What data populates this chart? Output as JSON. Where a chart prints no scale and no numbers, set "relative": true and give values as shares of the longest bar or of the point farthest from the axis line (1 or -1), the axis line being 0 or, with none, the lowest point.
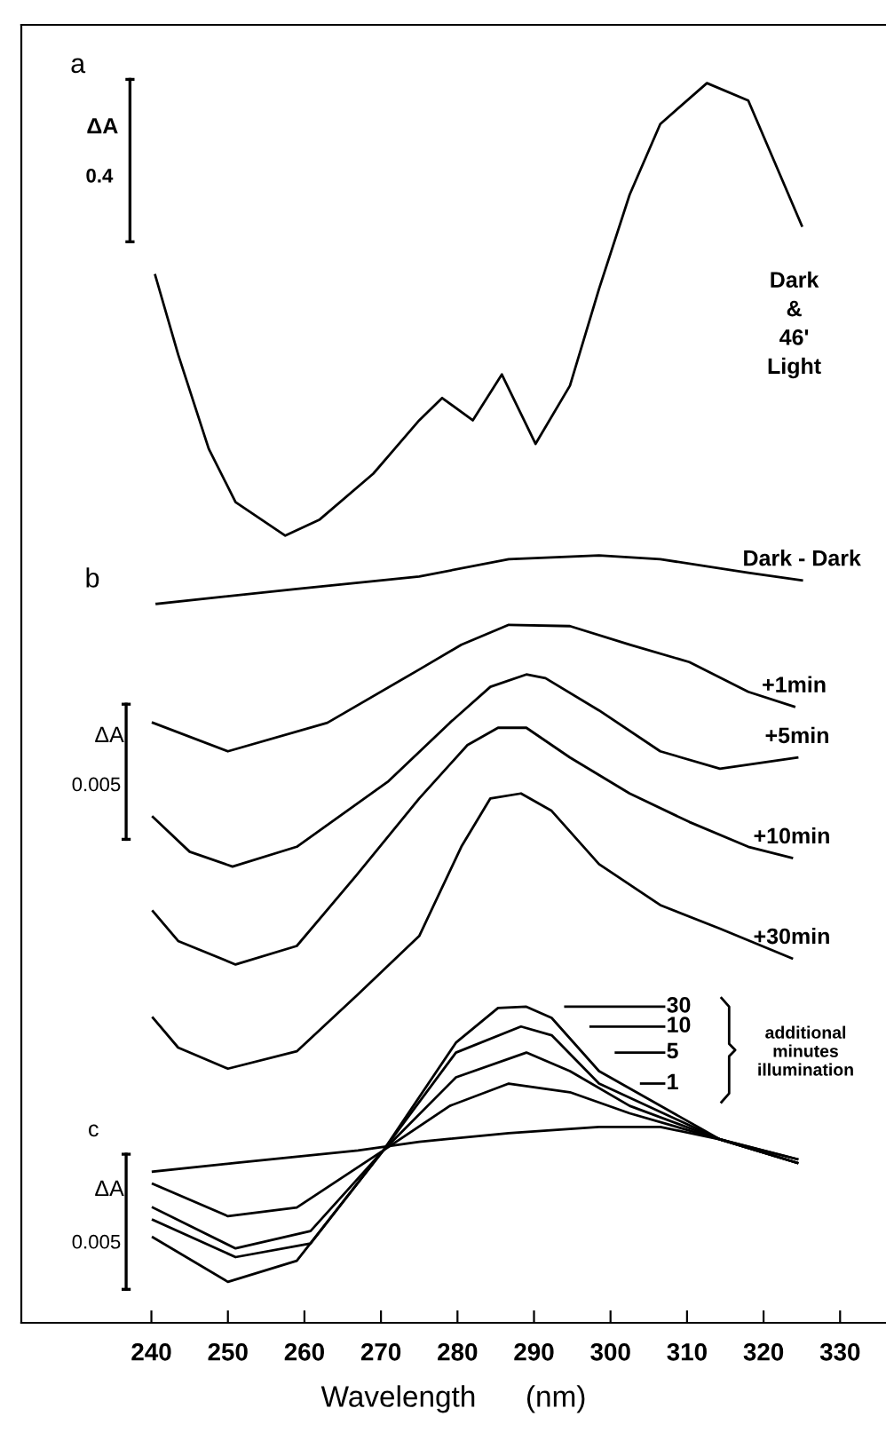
{
  "chart_data": {
    "type": "line",
    "relative": true,
    "xlabel": "Wavelength      (nm)",
    "xlim": [
      223,
      336
    ],
    "xticks": [
      240,
      250,
      260,
      270,
      280,
      290,
      300,
      310,
      320,
      330
    ],
    "grid": false,
    "legend": "right",
    "marker": "none",
    "line_style": "solid",
    "annotations": [
      "a",
      "ΔA",
      "0.4",
      "b",
      "ΔA",
      "0.005",
      "c",
      "ΔA",
      "0.005",
      "additional\nminutes\nillumination"
    ],
    "series": [
      {
        "name": "Dark\n&\n46'\nLight",
        "color": "#000000",
        "x": [
          240.5,
          243.5,
          247.5,
          251,
          257.5,
          262,
          269,
          275,
          278,
          282,
          285.8,
          290.2,
          294.7,
          298.5,
          302.5,
          306.5,
          312.6,
          318,
          325
        ],
        "values": [
          0.845,
          0.781,
          0.705,
          0.662,
          0.635,
          0.648,
          0.685,
          0.728,
          0.746,
          0.728,
          0.765,
          0.709,
          0.756,
          0.834,
          0.91,
          0.967,
          1.0,
          0.986,
          0.885
        ]
      },
      {
        "name": "Dark - Dark",
        "color": "#000000",
        "x": [
          240.7,
          259,
          275,
          286.7,
          298.5,
          306.5,
          318,
          325
        ],
        "values": [
          0.58,
          0.592,
          0.602,
          0.616,
          0.619,
          0.616,
          0.605,
          0.599
        ]
      },
      {
        "name": "+1min",
        "color": "#000000",
        "x": [
          240.2,
          250,
          263,
          275,
          280.5,
          286.7,
          294.7,
          302.5,
          310.3,
          318,
          324
        ],
        "values": [
          0.484,
          0.461,
          0.484,
          0.527,
          0.547,
          0.563,
          0.562,
          0.547,
          0.533,
          0.509,
          0.497
        ]
      },
      {
        "name": "+5min",
        "color": "#000000",
        "x": [
          240.2,
          245,
          250.6,
          259,
          271,
          279,
          284.3,
          289,
          291.5,
          298.5,
          306.5,
          314.3,
          324.4
        ],
        "values": [
          0.408,
          0.38,
          0.368,
          0.384,
          0.437,
          0.484,
          0.513,
          0.523,
          0.52,
          0.494,
          0.461,
          0.447,
          0.456
        ]
      },
      {
        "name": "+10min",
        "color": "#000000",
        "x": [
          240.2,
          243.5,
          251,
          259,
          266.8,
          275,
          281.3,
          285.3,
          289,
          294.7,
          302.5,
          310.3,
          318,
          323.7
        ],
        "values": [
          0.332,
          0.308,
          0.289,
          0.304,
          0.361,
          0.423,
          0.466,
          0.48,
          0.48,
          0.456,
          0.427,
          0.404,
          0.384,
          0.375
        ]
      },
      {
        "name": "+30min",
        "color": "#000000",
        "x": [
          240.2,
          243.5,
          250,
          259,
          267,
          275,
          280.5,
          284.3,
          288.3,
          292.3,
          298.5,
          306.5,
          314.3,
          323.7
        ],
        "values": [
          0.246,
          0.222,
          0.205,
          0.219,
          0.265,
          0.312,
          0.384,
          0.423,
          0.427,
          0.413,
          0.37,
          0.337,
          0.318,
          0.294
        ]
      },
      {
        "color": "#000000",
        "x": [
          240.2,
          251,
          267,
          275,
          286.7,
          298.5,
          306.5,
          314.3,
          324.4
        ],
        "values": [
          0.122,
          0.129,
          0.139,
          0.146,
          0.153,
          0.158,
          0.158,
          0.148,
          0.132
        ]
      },
      {
        "name": "1",
        "color": "#000000",
        "x": [
          240.2,
          250,
          259,
          270.3,
          279,
          286.7,
          294.7,
          302.5,
          314.3,
          324.4
        ],
        "values": [
          0.112,
          0.086,
          0.093,
          0.139,
          0.175,
          0.193,
          0.186,
          0.169,
          0.148,
          0.132
        ]
      },
      {
        "name": "5",
        "color": "#000000",
        "x": [
          240.2,
          251,
          260.8,
          270.3,
          279.8,
          289,
          294.7,
          302.5,
          314.3,
          324.4
        ],
        "values": [
          0.093,
          0.06,
          0.074,
          0.139,
          0.198,
          0.218,
          0.203,
          0.175,
          0.148,
          0.129
        ]
      },
      {
        "name": "10",
        "color": "#000000",
        "x": [
          240.2,
          251,
          260.8,
          270.3,
          279.8,
          288.3,
          292.3,
          298.5,
          314.3,
          324.4
        ],
        "values": [
          0.083,
          0.053,
          0.064,
          0.139,
          0.218,
          0.239,
          0.232,
          0.193,
          0.148,
          0.129
        ]
      },
      {
        "name": "30",
        "color": "#000000",
        "x": [
          240.2,
          250,
          259,
          270.3,
          279.8,
          285.3,
          289,
          292.3,
          298.5,
          314.3,
          324.4
        ],
        "values": [
          0.069,
          0.033,
          0.05,
          0.139,
          0.226,
          0.254,
          0.255,
          0.246,
          0.203,
          0.148,
          0.129
        ]
      }
    ]
  }
}
